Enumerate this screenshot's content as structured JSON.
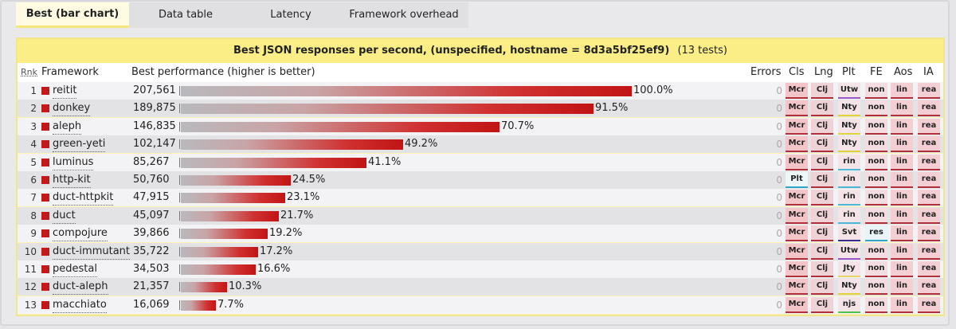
{
  "tabs": [
    {
      "label": "Best (bar chart)",
      "active": true
    },
    {
      "label": "Data table",
      "active": false
    },
    {
      "label": "Latency",
      "active": false
    },
    {
      "label": "Framework overhead",
      "active": false
    }
  ],
  "caption": {
    "title": "Best JSON responses per second, (unspecified, hostname = 8d3a5bf25ef9)",
    "count": "(13 tests)"
  },
  "header": {
    "rank": "Rnk",
    "framework": "Framework",
    "performance": "Best performance (higher is better)",
    "errors": "Errors",
    "cls": "Cls",
    "lng": "Lng",
    "plt": "Plt",
    "fe": "FE",
    "aos": "Aos",
    "ia": "IA"
  },
  "colors": {
    "bar_end": "#c21414",
    "bar_start": "#b9b9bd",
    "caption_bg": "#fbee86",
    "plt_utw": "#9b59c8",
    "plt_nty": "#e0d23a",
    "plt_rin": "#4fb7d6",
    "plt_svt": "#3a2f8f",
    "plt_jty": "#e8d26a",
    "plt_njs": "#4cc14c",
    "plt_plt": "#2fa6c8",
    "fe_res": "#2fa6c8",
    "default_attr": "#b0303a"
  },
  "chart_data": {
    "type": "bar",
    "title": "Best JSON responses per second, (unspecified, hostname = 8d3a5bf25ef9)",
    "categories": [
      "reitit",
      "donkey",
      "aleph",
      "green-yeti",
      "luminus",
      "http-kit",
      "duct-httpkit",
      "duct",
      "compojure",
      "duct-immutant",
      "pedestal",
      "duct-aleph",
      "macchiato"
    ],
    "values": [
      207561,
      189875,
      146835,
      102147,
      85267,
      50760,
      47915,
      45097,
      39866,
      35722,
      34503,
      21357,
      16069
    ],
    "percent_labels": [
      "100.0%",
      "91.5%",
      "70.7%",
      "49.2%",
      "41.1%",
      "24.5%",
      "23.1%",
      "21.7%",
      "19.2%",
      "17.2%",
      "16.6%",
      "10.3%",
      "7.7%"
    ],
    "rows": [
      {
        "rank": "1",
        "framework": "reitit",
        "rps": "207,561",
        "pct": "100.0%",
        "errors": "0",
        "cls": "Mcr",
        "lng": "Clj",
        "plt": "Utw",
        "fe": "non",
        "aos": "lin",
        "ia": "rea"
      },
      {
        "rank": "2",
        "framework": "donkey",
        "rps": "189,875",
        "pct": "91.5%",
        "errors": "0",
        "cls": "Mcr",
        "lng": "Clj",
        "plt": "Nty",
        "fe": "non",
        "aos": "lin",
        "ia": "rea"
      },
      {
        "rank": "3",
        "framework": "aleph",
        "rps": "146,835",
        "pct": "70.7%",
        "errors": "0",
        "cls": "Mcr",
        "lng": "Clj",
        "plt": "Nty",
        "fe": "non",
        "aos": "lin",
        "ia": "rea"
      },
      {
        "rank": "4",
        "framework": "green-yeti",
        "rps": "102,147",
        "pct": "49.2%",
        "errors": "0",
        "cls": "Mcr",
        "lng": "Clj",
        "plt": "Nty",
        "fe": "non",
        "aos": "lin",
        "ia": "rea"
      },
      {
        "rank": "5",
        "framework": "luminus",
        "rps": "85,267",
        "pct": "41.1%",
        "errors": "0",
        "cls": "Mcr",
        "lng": "Clj",
        "plt": "rin",
        "fe": "non",
        "aos": "lin",
        "ia": "rea"
      },
      {
        "rank": "6",
        "framework": "http-kit",
        "rps": "50,760",
        "pct": "24.5%",
        "errors": "0",
        "cls": "Plt",
        "lng": "Clj",
        "plt": "rin",
        "fe": "non",
        "aos": "lin",
        "ia": "rea"
      },
      {
        "rank": "7",
        "framework": "duct-httpkit",
        "rps": "47,915",
        "pct": "23.1%",
        "errors": "0",
        "cls": "Mcr",
        "lng": "Clj",
        "plt": "rin",
        "fe": "non",
        "aos": "lin",
        "ia": "rea"
      },
      {
        "rank": "8",
        "framework": "duct",
        "rps": "45,097",
        "pct": "21.7%",
        "errors": "0",
        "cls": "Mcr",
        "lng": "Clj",
        "plt": "rin",
        "fe": "non",
        "aos": "lin",
        "ia": "rea"
      },
      {
        "rank": "9",
        "framework": "compojure",
        "rps": "39,866",
        "pct": "19.2%",
        "errors": "0",
        "cls": "Mcr",
        "lng": "Clj",
        "plt": "Svt",
        "fe": "res",
        "aos": "lin",
        "ia": "rea"
      },
      {
        "rank": "10",
        "framework": "duct-immutant",
        "rps": "35,722",
        "pct": "17.2%",
        "errors": "0",
        "cls": "Mcr",
        "lng": "Clj",
        "plt": "Utw",
        "fe": "non",
        "aos": "lin",
        "ia": "rea"
      },
      {
        "rank": "11",
        "framework": "pedestal",
        "rps": "34,503",
        "pct": "16.6%",
        "errors": "0",
        "cls": "Mcr",
        "lng": "Clj",
        "plt": "Jty",
        "fe": "non",
        "aos": "lin",
        "ia": "rea"
      },
      {
        "rank": "12",
        "framework": "duct-aleph",
        "rps": "21,357",
        "pct": "10.3%",
        "errors": "0",
        "cls": "Mcr",
        "lng": "Clj",
        "plt": "Nty",
        "fe": "non",
        "aos": "lin",
        "ia": "rea"
      },
      {
        "rank": "13",
        "framework": "macchiato",
        "rps": "16,069",
        "pct": "7.7%",
        "errors": "0",
        "cls": "Mcr",
        "lng": "Clj",
        "plt": "njs",
        "fe": "non",
        "aos": "lin",
        "ia": "rea"
      }
    ],
    "xlim": [
      0,
      207561
    ],
    "legend": "none"
  }
}
